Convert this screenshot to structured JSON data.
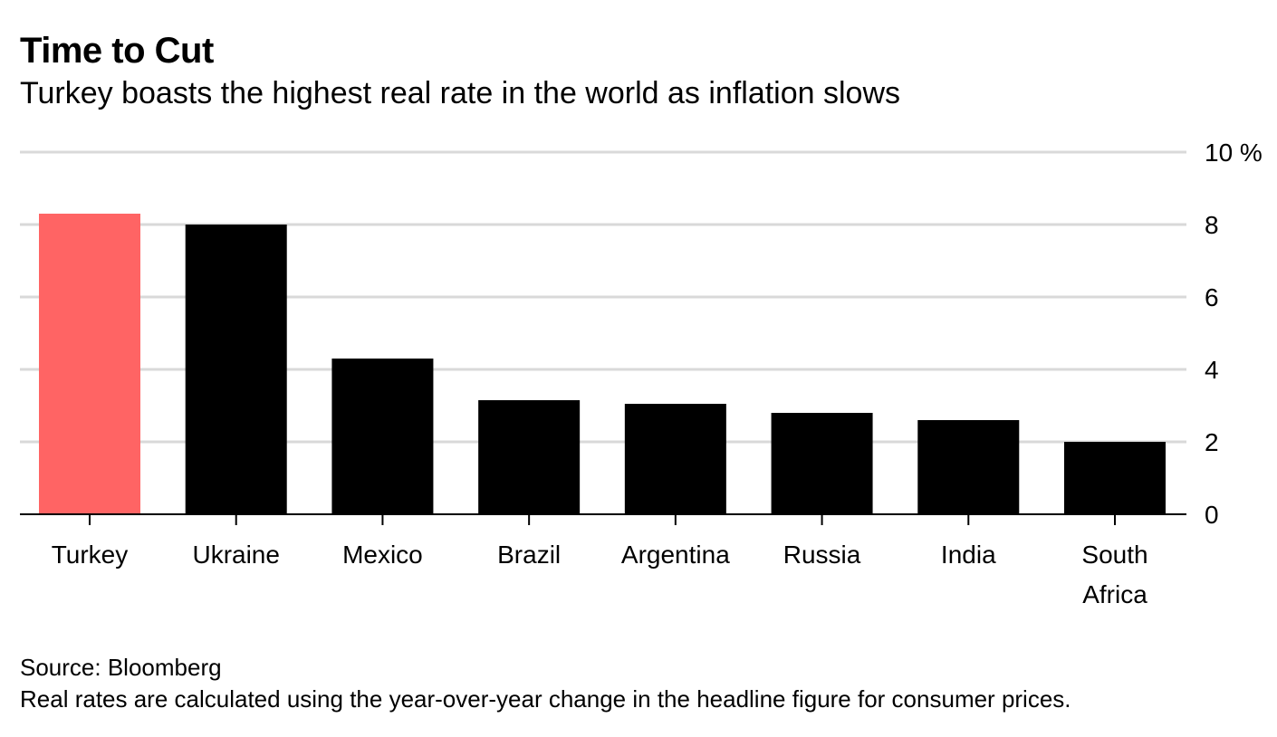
{
  "header": {
    "title": "Time to Cut",
    "subtitle": "Turkey boasts the highest real rate in the world as inflation slows"
  },
  "footer": {
    "source": "Source: Bloomberg",
    "note": "Real rates are calculated using the year-over-year change in the headline figure for consumer prices."
  },
  "colors": {
    "highlight": "#ff6464",
    "bar": "#000000",
    "grid": "#d9d9d9",
    "axis": "#000000"
  },
  "chart_data": {
    "type": "bar",
    "title": "Time to Cut",
    "subtitle": "Turkey boasts the highest real rate in the world as inflation slows",
    "categories": [
      "Turkey",
      "Ukraine",
      "Mexico",
      "Brazil",
      "Argentina",
      "Russia",
      "India",
      "South Africa"
    ],
    "category_lines": [
      [
        "Turkey"
      ],
      [
        "Ukraine"
      ],
      [
        "Mexico"
      ],
      [
        "Brazil"
      ],
      [
        "Argentina"
      ],
      [
        "Russia"
      ],
      [
        "India"
      ],
      [
        "South",
        "Africa"
      ]
    ],
    "values": [
      8.3,
      8.0,
      4.3,
      3.15,
      3.05,
      2.8,
      2.6,
      2.0
    ],
    "highlight_index": 0,
    "ylim": [
      0,
      10
    ],
    "yticks": [
      0,
      2,
      4,
      6,
      8,
      10
    ],
    "ytick_labels": [
      "0",
      "2",
      "4",
      "6",
      "8",
      "10 %"
    ],
    "y_axis_side": "right",
    "grid": true,
    "legend": "none"
  }
}
